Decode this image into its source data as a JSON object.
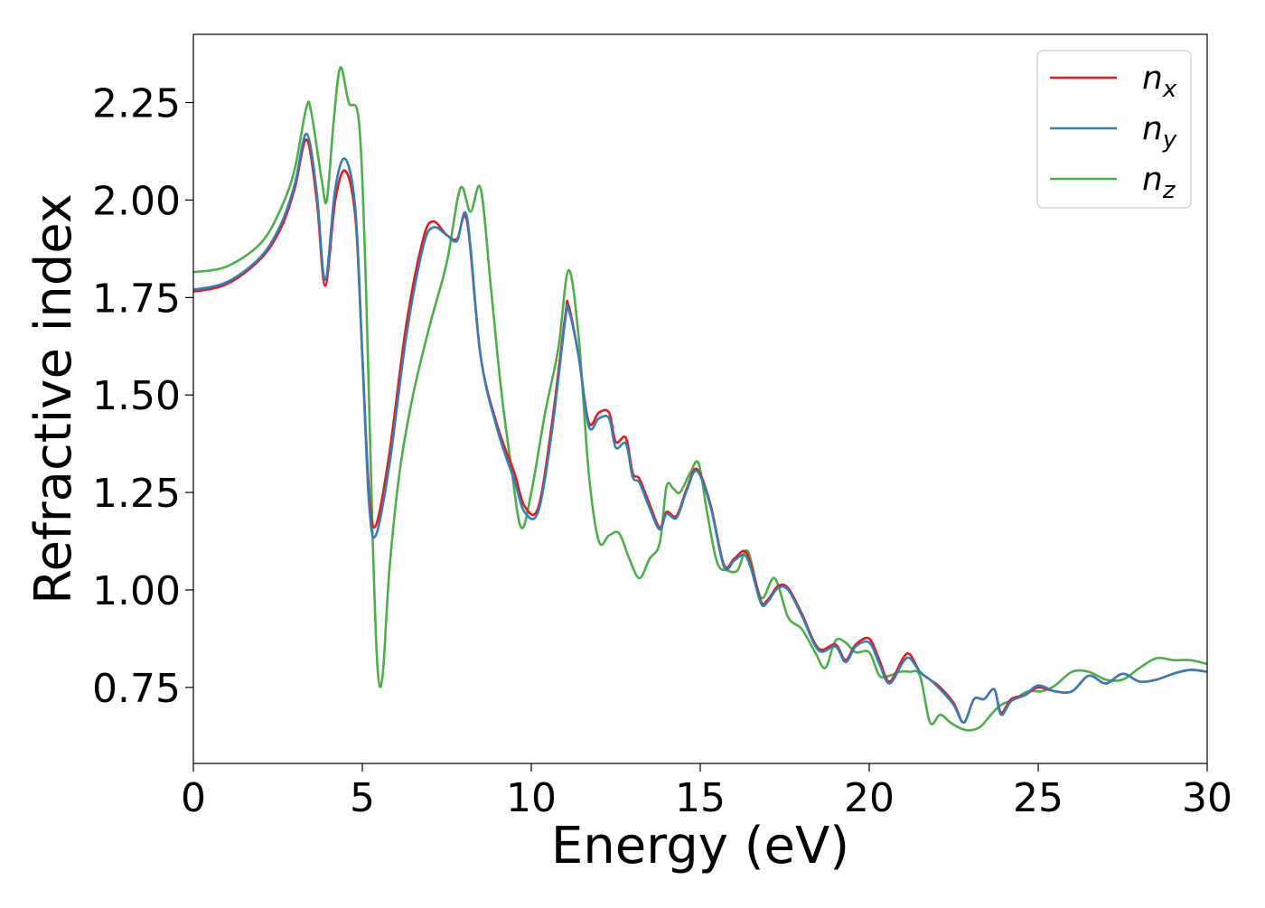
{
  "chart_data": {
    "type": "line",
    "title": "",
    "xlabel": "Energy (eV)",
    "ylabel": "Refractive index",
    "xlim": [
      0,
      30
    ],
    "ylim": [
      0.555,
      2.425
    ],
    "xticks": [
      0,
      5,
      10,
      15,
      20,
      25,
      30
    ],
    "xtick_labels": [
      "0",
      "5",
      "10",
      "15",
      "20",
      "25",
      "30"
    ],
    "yticks": [
      0.75,
      1.0,
      1.25,
      1.5,
      1.75,
      2.0,
      2.25
    ],
    "ytick_labels": [
      "0.75",
      "1.00",
      "1.25",
      "1.50",
      "1.75",
      "2.00",
      "2.25"
    ],
    "grid": false,
    "legend_position": "top-right",
    "series": [
      {
        "name": "n",
        "subscript": "x",
        "color": "#e41a1c",
        "x": [
          0,
          1,
          2,
          2.6,
          3.0,
          3.35,
          3.65,
          3.9,
          4.2,
          4.5,
          4.8,
          5.0,
          5.2,
          5.4,
          5.8,
          6.3,
          6.8,
          7.1,
          7.5,
          7.8,
          8.1,
          8.5,
          9.0,
          9.5,
          9.8,
          10.2,
          10.6,
          11.0,
          11.1,
          11.4,
          11.7,
          12.0,
          12.3,
          12.5,
          12.8,
          13.0,
          13.2,
          13.5,
          13.8,
          14.0,
          14.3,
          14.6,
          14.9,
          15.3,
          15.7,
          16.0,
          16.3,
          16.5,
          16.8,
          17.0,
          17.3,
          17.6,
          18.0,
          18.5,
          19.0,
          19.3,
          19.6,
          20.0,
          20.3,
          20.6,
          21.0,
          21.2,
          21.5,
          21.8,
          22.1,
          22.5,
          22.8,
          23.1,
          23.4,
          23.7,
          23.9,
          24.2,
          24.6,
          25.0,
          25.5,
          26.0,
          26.5,
          27.0,
          27.5,
          28.0,
          28.5,
          29.0,
          29.5,
          30.0
        ],
        "values": [
          1.765,
          1.785,
          1.85,
          1.93,
          2.03,
          2.155,
          2.0,
          1.78,
          2.0,
          2.075,
          1.95,
          1.6,
          1.25,
          1.165,
          1.35,
          1.68,
          1.9,
          1.945,
          1.91,
          1.9,
          1.945,
          1.6,
          1.42,
          1.3,
          1.215,
          1.21,
          1.42,
          1.7,
          1.73,
          1.6,
          1.43,
          1.455,
          1.455,
          1.38,
          1.39,
          1.3,
          1.285,
          1.22,
          1.16,
          1.2,
          1.19,
          1.26,
          1.31,
          1.22,
          1.065,
          1.08,
          1.1,
          1.065,
          0.97,
          0.975,
          1.01,
          1.005,
          0.94,
          0.85,
          0.86,
          0.82,
          0.86,
          0.875,
          0.82,
          0.765,
          0.825,
          0.835,
          0.79,
          0.77,
          0.75,
          0.71,
          0.66,
          0.72,
          0.72,
          0.745,
          0.685,
          0.72,
          0.73,
          0.75,
          0.74,
          0.74,
          0.78,
          0.76,
          0.785,
          0.765,
          0.77,
          0.785,
          0.795,
          0.79
        ]
      },
      {
        "name": "n",
        "subscript": "y",
        "color": "#377eb8",
        "x": [
          0,
          1,
          2,
          2.6,
          3.0,
          3.35,
          3.65,
          3.9,
          4.2,
          4.5,
          4.8,
          5.0,
          5.2,
          5.4,
          5.8,
          6.3,
          6.8,
          7.1,
          7.5,
          7.8,
          8.1,
          8.5,
          9.0,
          9.5,
          9.8,
          10.2,
          10.6,
          11.0,
          11.1,
          11.4,
          11.7,
          12.0,
          12.3,
          12.5,
          12.8,
          13.0,
          13.2,
          13.5,
          13.8,
          14.0,
          14.3,
          14.6,
          14.9,
          15.3,
          15.7,
          16.0,
          16.3,
          16.5,
          16.8,
          17.0,
          17.3,
          17.6,
          18.0,
          18.5,
          19.0,
          19.3,
          19.6,
          20.0,
          20.3,
          20.6,
          21.0,
          21.2,
          21.5,
          21.8,
          22.1,
          22.5,
          22.8,
          23.1,
          23.4,
          23.7,
          23.9,
          24.2,
          24.6,
          25.0,
          25.5,
          26.0,
          26.5,
          27.0,
          27.5,
          28.0,
          28.5,
          29.0,
          29.5,
          30.0
        ],
        "values": [
          1.77,
          1.79,
          1.855,
          1.94,
          2.04,
          2.17,
          2.02,
          1.795,
          2.03,
          2.105,
          1.97,
          1.6,
          1.22,
          1.14,
          1.32,
          1.65,
          1.88,
          1.93,
          1.91,
          1.895,
          1.955,
          1.6,
          1.41,
          1.28,
          1.2,
          1.2,
          1.4,
          1.69,
          1.72,
          1.6,
          1.42,
          1.44,
          1.44,
          1.365,
          1.375,
          1.29,
          1.275,
          1.21,
          1.155,
          1.195,
          1.185,
          1.255,
          1.305,
          1.215,
          1.06,
          1.075,
          1.09,
          1.055,
          0.965,
          0.97,
          1.005,
          1.0,
          0.935,
          0.845,
          0.855,
          0.815,
          0.855,
          0.865,
          0.81,
          0.76,
          0.815,
          0.825,
          0.79,
          0.77,
          0.745,
          0.705,
          0.66,
          0.72,
          0.72,
          0.745,
          0.68,
          0.715,
          0.73,
          0.755,
          0.74,
          0.74,
          0.78,
          0.76,
          0.785,
          0.765,
          0.77,
          0.785,
          0.795,
          0.79
        ]
      },
      {
        "name": "n",
        "subscript": "z",
        "color": "#4daf4a",
        "x": [
          0,
          1,
          2,
          2.6,
          3.0,
          3.35,
          3.5,
          3.8,
          3.95,
          4.15,
          4.35,
          4.6,
          4.9,
          5.1,
          5.3,
          5.45,
          5.6,
          5.8,
          6.1,
          6.5,
          7.0,
          7.5,
          7.9,
          8.2,
          8.5,
          8.8,
          9.1,
          9.4,
          9.7,
          10.0,
          10.4,
          10.8,
          11.1,
          11.4,
          11.7,
          12.0,
          12.3,
          12.6,
          12.9,
          13.2,
          13.5,
          13.8,
          14.0,
          14.2,
          14.4,
          14.7,
          14.95,
          15.2,
          15.5,
          15.8,
          16.1,
          16.4,
          16.8,
          17.2,
          17.6,
          18.0,
          18.4,
          18.7,
          19.0,
          19.3,
          19.6,
          20.0,
          20.3,
          20.6,
          20.9,
          21.2,
          21.5,
          21.8,
          22.1,
          22.4,
          22.7,
          23.0,
          23.3,
          23.6,
          23.9,
          24.3,
          24.7,
          25.1,
          25.5,
          26.0,
          26.5,
          27.0,
          27.5,
          28.0,
          28.5,
          29.0,
          29.5,
          30.0
        ],
        "values": [
          1.815,
          1.83,
          1.89,
          1.98,
          2.08,
          2.24,
          2.22,
          2.05,
          2.0,
          2.2,
          2.34,
          2.25,
          2.2,
          1.8,
          1.15,
          0.8,
          0.78,
          1.05,
          1.3,
          1.5,
          1.68,
          1.84,
          2.03,
          1.97,
          2.03,
          1.78,
          1.52,
          1.32,
          1.16,
          1.25,
          1.45,
          1.62,
          1.82,
          1.65,
          1.3,
          1.125,
          1.14,
          1.145,
          1.08,
          1.03,
          1.08,
          1.12,
          1.265,
          1.26,
          1.25,
          1.3,
          1.325,
          1.2,
          1.07,
          1.05,
          1.05,
          1.1,
          0.98,
          1.03,
          0.93,
          0.9,
          0.84,
          0.8,
          0.87,
          0.865,
          0.84,
          0.84,
          0.78,
          0.78,
          0.79,
          0.79,
          0.78,
          0.66,
          0.68,
          0.66,
          0.645,
          0.64,
          0.65,
          0.68,
          0.705,
          0.72,
          0.74,
          0.74,
          0.755,
          0.79,
          0.79,
          0.77,
          0.77,
          0.8,
          0.825,
          0.82,
          0.82,
          0.81
        ]
      }
    ]
  }
}
